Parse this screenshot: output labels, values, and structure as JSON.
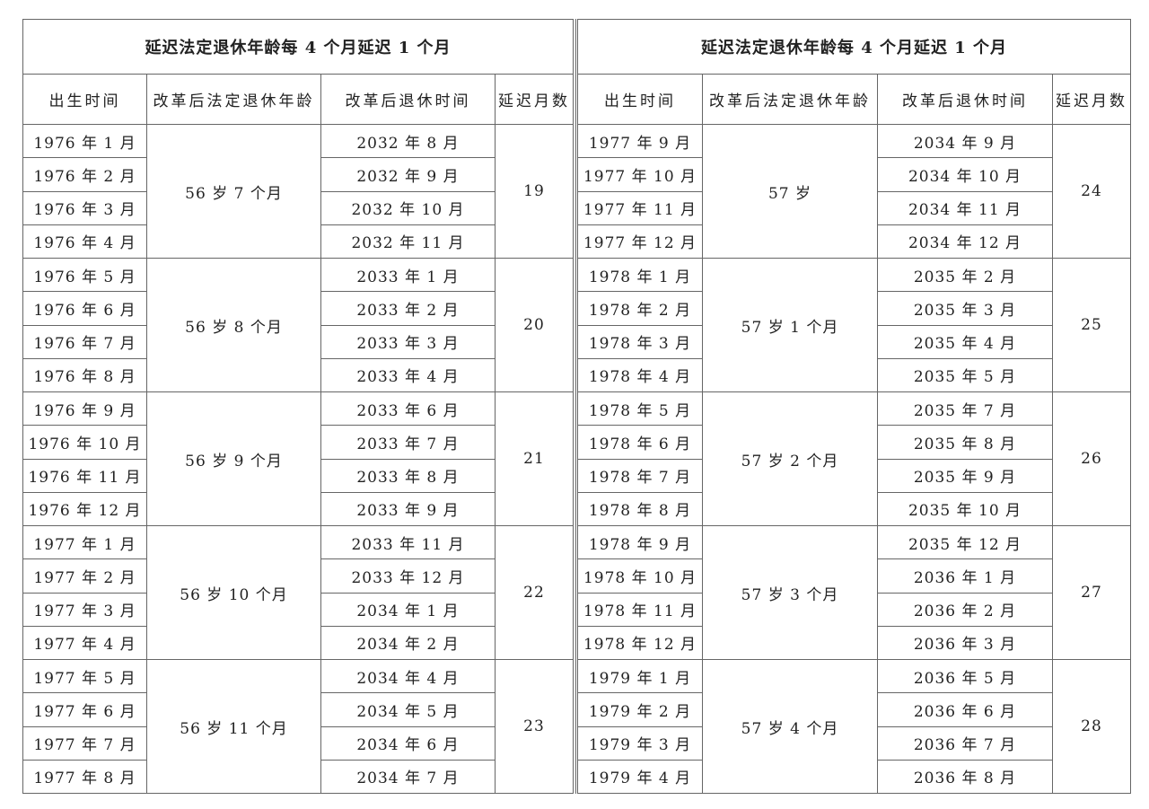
{
  "tables": [
    {
      "title": "延迟法定退休年龄每 4 个月延迟 1 个月",
      "headers": [
        "出生时间",
        "改革后法定退休年龄",
        "改革后退休时间",
        "延迟月数"
      ],
      "groups": [
        {
          "birth": [
            "1976 年 1 月",
            "1976 年 2 月",
            "1976 年 3 月",
            "1976 年 4 月"
          ],
          "age": "56 岁 7 个月",
          "retire": [
            "2032 年 8 月",
            "2032 年 9 月",
            "2032 年 10 月",
            "2032 年 11 月"
          ],
          "delay": "19"
        },
        {
          "birth": [
            "1976 年 5 月",
            "1976 年 6 月",
            "1976 年 7 月",
            "1976 年 8 月"
          ],
          "age": "56 岁 8 个月",
          "retire": [
            "2033 年 1 月",
            "2033 年 2 月",
            "2033 年 3 月",
            "2033 年 4 月"
          ],
          "delay": "20"
        },
        {
          "birth": [
            "1976 年 9 月",
            "1976 年 10 月",
            "1976 年 11 月",
            "1976 年 12 月"
          ],
          "age": "56 岁 9 个月",
          "retire": [
            "2033 年 6 月",
            "2033 年 7 月",
            "2033 年 8 月",
            "2033 年 9 月"
          ],
          "delay": "21"
        },
        {
          "birth": [
            "1977 年 1 月",
            "1977 年 2 月",
            "1977 年 3 月",
            "1977 年 4 月"
          ],
          "age": "56 岁 10 个月",
          "retire": [
            "2033 年 11 月",
            "2033 年 12 月",
            "2034 年 1 月",
            "2034 年 2 月"
          ],
          "delay": "22"
        },
        {
          "birth": [
            "1977 年 5 月",
            "1977 年 6 月",
            "1977 年 7 月",
            "1977 年 8 月"
          ],
          "age": "56 岁 11 个月",
          "retire": [
            "2034 年 4 月",
            "2034 年 5 月",
            "2034 年 6 月",
            "2034 年 7 月"
          ],
          "delay": "23"
        }
      ]
    },
    {
      "title": "延迟法定退休年龄每 4 个月延迟 1 个月",
      "headers": [
        "出生时间",
        "改革后法定退休年龄",
        "改革后退休时间",
        "延迟月数"
      ],
      "groups": [
        {
          "birth": [
            "1977 年 9 月",
            "1977 年 10 月",
            "1977 年 11 月",
            "1977 年 12 月"
          ],
          "age": "57 岁",
          "retire": [
            "2034 年 9 月",
            "2034 年 10 月",
            "2034 年 11 月",
            "2034 年 12 月"
          ],
          "delay": "24"
        },
        {
          "birth": [
            "1978 年 1 月",
            "1978 年 2 月",
            "1978 年 3 月",
            "1978 年 4 月"
          ],
          "age": "57 岁 1 个月",
          "retire": [
            "2035 年 2 月",
            "2035 年 3 月",
            "2035 年 4 月",
            "2035 年 5 月"
          ],
          "delay": "25"
        },
        {
          "birth": [
            "1978 年 5 月",
            "1978 年 6 月",
            "1978 年 7 月",
            "1978 年 8 月"
          ],
          "age": "57 岁 2 个月",
          "retire": [
            "2035 年 7 月",
            "2035 年 8 月",
            "2035 年 9 月",
            "2035 年 10 月"
          ],
          "delay": "26"
        },
        {
          "birth": [
            "1978 年 9 月",
            "1978 年 10 月",
            "1978 年 11 月",
            "1978 年 12 月"
          ],
          "age": "57 岁 3 个月",
          "retire": [
            "2035 年 12 月",
            "2036 年 1 月",
            "2036 年 2 月",
            "2036 年 3 月"
          ],
          "delay": "27"
        },
        {
          "birth": [
            "1979 年 1 月",
            "1979 年 2 月",
            "1979 年 3 月",
            "1979 年 4 月"
          ],
          "age": "57 岁 4 个月",
          "retire": [
            "2036 年 5 月",
            "2036 年 6 月",
            "2036 年 7 月",
            "2036 年 8 月"
          ],
          "delay": "28"
        }
      ]
    }
  ]
}
